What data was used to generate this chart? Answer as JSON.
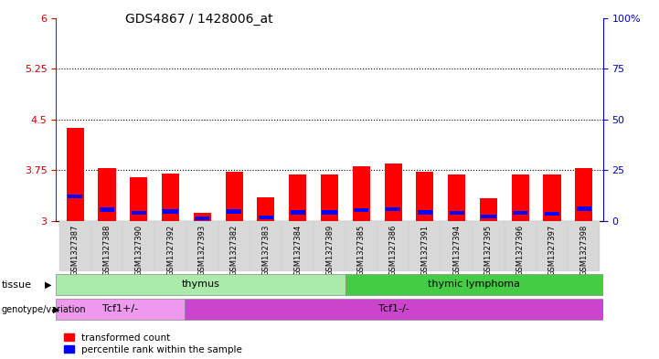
{
  "title": "GDS4867 / 1428006_at",
  "samples": [
    "GSM1327387",
    "GSM1327388",
    "GSM1327390",
    "GSM1327392",
    "GSM1327393",
    "GSM1327382",
    "GSM1327383",
    "GSM1327384",
    "GSM1327389",
    "GSM1327385",
    "GSM1327386",
    "GSM1327391",
    "GSM1327394",
    "GSM1327395",
    "GSM1327396",
    "GSM1327397",
    "GSM1327398"
  ],
  "red_values": [
    4.38,
    3.78,
    3.65,
    3.7,
    3.12,
    3.73,
    3.35,
    3.68,
    3.68,
    3.8,
    3.85,
    3.73,
    3.68,
    3.33,
    3.68,
    3.68,
    3.78
  ],
  "blue_positions": [
    0.24,
    0.17,
    0.13,
    0.15,
    0.07,
    0.15,
    0.06,
    0.14,
    0.14,
    0.16,
    0.17,
    0.13,
    0.13,
    0.1,
    0.13,
    0.11,
    0.19
  ],
  "ylim_left": [
    3.0,
    6.0
  ],
  "ylim_right": [
    0,
    100
  ],
  "yticks_left": [
    3.0,
    3.75,
    4.5,
    5.25,
    6.0
  ],
  "ytick_labels_left": [
    "3",
    "3.75",
    "4.5",
    "5.25",
    "6"
  ],
  "yticks_right": [
    0,
    25,
    50,
    75,
    100
  ],
  "ytick_labels_right": [
    "0",
    "25",
    "50",
    "75",
    "100%"
  ],
  "hlines": [
    3.75,
    4.5,
    5.25
  ],
  "tissue_groups": [
    {
      "label": "thymus",
      "start": 0,
      "end": 9,
      "color": "#aaeaaa"
    },
    {
      "label": "thymic lymphoma",
      "start": 9,
      "end": 17,
      "color": "#44cc44"
    }
  ],
  "genotype_groups": [
    {
      "label": "Tcf1+/-",
      "start": 0,
      "end": 4,
      "color": "#ee99ee"
    },
    {
      "label": "Tcf1-/-",
      "start": 4,
      "end": 17,
      "color": "#cc44cc"
    }
  ],
  "bar_width": 0.55,
  "bar_bottom": 3.0,
  "left_tick_color": "#CC0000",
  "right_tick_color": "#0000CC",
  "legend_red": "transformed count",
  "legend_blue": "percentile rank within the sample"
}
